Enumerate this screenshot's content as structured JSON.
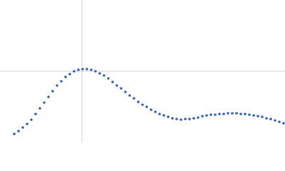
{
  "chart_data": {
    "type": "scatter",
    "x": [
      20,
      26,
      32,
      38,
      44,
      50,
      56,
      62,
      68,
      74,
      80,
      86,
      92,
      98,
      104,
      110,
      116,
      122,
      128,
      134,
      140,
      146,
      152,
      158,
      164,
      170,
      176,
      182,
      188,
      194,
      200,
      206,
      212,
      218,
      224,
      230,
      236,
      242,
      248,
      254,
      260,
      266,
      272,
      278,
      284,
      290,
      296,
      302,
      308,
      314,
      320,
      326,
      332,
      338,
      344,
      350,
      356,
      362,
      368,
      374,
      380,
      386,
      392,
      398
    ],
    "values": [
      12,
      16,
      21,
      26,
      32,
      40,
      48,
      56,
      64,
      72,
      80,
      86,
      92,
      96,
      100,
      102,
      103,
      103,
      102,
      100,
      97,
      94,
      90,
      85,
      80,
      76,
      71,
      66,
      62,
      57,
      53,
      50,
      46,
      43,
      40,
      38,
      36,
      34,
      33,
      32,
      33,
      33,
      34,
      35,
      37,
      38,
      39,
      39,
      40,
      40,
      41,
      41,
      41,
      40,
      40,
      39,
      38,
      37,
      36,
      34,
      33,
      31,
      29,
      27
    ],
    "color": "#3a67b5",
    "xlim": [
      0,
      400
    ],
    "ylim": [
      0,
      200
    ],
    "grid_x": [
      115
    ],
    "grid_y": [
      100
    ],
    "grid_color": "#d0d0d0"
  }
}
